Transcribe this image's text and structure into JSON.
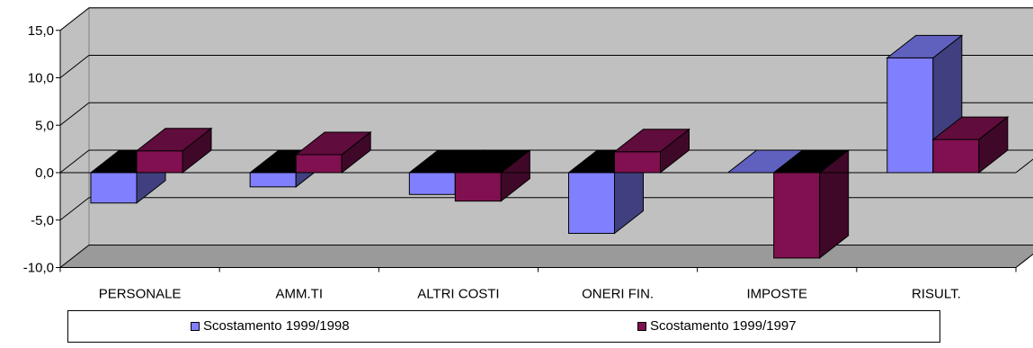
{
  "chart_data": {
    "type": "bar",
    "categories": [
      "PERSONALE",
      "AMM.TI",
      "ALTRI COSTI",
      "ONERI FIN.",
      "IMPOSTE",
      "RISULT."
    ],
    "series": [
      {
        "name": "Scostamento 1999/1998",
        "values": [
          -3.2,
          -1.5,
          -2.3,
          -6.4,
          0.0,
          12.1
        ],
        "color": "#8080ff"
      },
      {
        "name": "Scostamento 1999/1997",
        "values": [
          2.3,
          1.9,
          -3.0,
          2.2,
          -9.0,
          3.5
        ],
        "color": "#801050"
      }
    ],
    "yticks": [
      "15,0",
      "10,0",
      "5,0",
      "0,0",
      "-5,0",
      "-10,0"
    ],
    "ylim": [
      -10,
      15
    ],
    "grid": true,
    "legend_position": "bottom"
  }
}
